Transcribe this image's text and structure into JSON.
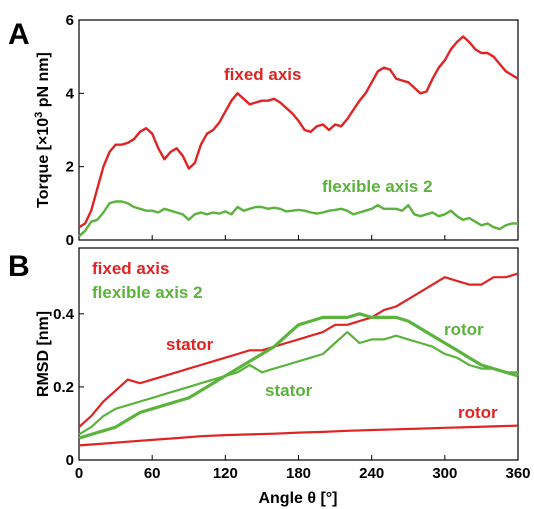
{
  "colors": {
    "red": "#e02424",
    "green": "#5bb33d",
    "axis": "#000000"
  },
  "chart_data": [
    {
      "panel": "A",
      "type": "line",
      "ylabel": "Torque [×10³ pN nm]",
      "xlabel": "",
      "xlim": [
        0,
        360
      ],
      "ylim": [
        0,
        6
      ],
      "xticks": [
        "0",
        "60",
        "120",
        "180",
        "240",
        "300",
        "360"
      ],
      "yticks": [
        "0",
        "2",
        "4",
        "6"
      ],
      "grid": false,
      "annotations": [
        {
          "text": "fixed axis",
          "color": "red"
        },
        {
          "text": "flexible axis 2",
          "color": "green"
        }
      ],
      "series": [
        {
          "name": "fixed axis",
          "color": "red",
          "x": [
            0,
            5,
            10,
            15,
            20,
            25,
            30,
            35,
            40,
            45,
            50,
            55,
            60,
            65,
            70,
            75,
            80,
            85,
            90,
            95,
            100,
            105,
            110,
            115,
            120,
            125,
            130,
            135,
            140,
            145,
            150,
            155,
            160,
            165,
            170,
            175,
            180,
            185,
            190,
            195,
            200,
            205,
            210,
            215,
            220,
            225,
            230,
            235,
            240,
            245,
            250,
            255,
            260,
            265,
            270,
            275,
            280,
            285,
            290,
            295,
            300,
            305,
            310,
            315,
            320,
            325,
            330,
            335,
            340,
            345,
            350,
            355,
            360
          ],
          "y": [
            0.35,
            0.45,
            0.8,
            1.4,
            2.0,
            2.4,
            2.6,
            2.6,
            2.65,
            2.75,
            2.95,
            3.05,
            2.9,
            2.5,
            2.2,
            2.4,
            2.5,
            2.3,
            1.95,
            2.1,
            2.6,
            2.9,
            3.0,
            3.2,
            3.5,
            3.8,
            4.0,
            3.85,
            3.7,
            3.75,
            3.8,
            3.8,
            3.85,
            3.75,
            3.6,
            3.45,
            3.25,
            3.0,
            2.95,
            3.1,
            3.15,
            3.0,
            3.15,
            3.1,
            3.3,
            3.55,
            3.8,
            4.0,
            4.3,
            4.6,
            4.7,
            4.65,
            4.4,
            4.35,
            4.3,
            4.15,
            4.0,
            4.05,
            4.4,
            4.7,
            4.9,
            5.2,
            5.4,
            5.55,
            5.4,
            5.2,
            5.1,
            5.1,
            5.0,
            4.8,
            4.6,
            4.5,
            4.4
          ]
        },
        {
          "name": "flexible axis 2",
          "color": "green",
          "x": [
            0,
            5,
            10,
            15,
            20,
            25,
            30,
            35,
            40,
            45,
            50,
            55,
            60,
            65,
            70,
            75,
            80,
            85,
            90,
            95,
            100,
            105,
            110,
            115,
            120,
            125,
            130,
            135,
            140,
            145,
            150,
            155,
            160,
            165,
            170,
            175,
            180,
            185,
            190,
            195,
            200,
            205,
            210,
            215,
            220,
            225,
            230,
            235,
            240,
            245,
            250,
            255,
            260,
            265,
            270,
            275,
            280,
            285,
            290,
            295,
            300,
            305,
            310,
            315,
            320,
            325,
            330,
            335,
            340,
            345,
            350,
            355,
            360
          ],
          "y": [
            0.1,
            0.25,
            0.5,
            0.55,
            0.75,
            1.0,
            1.05,
            1.05,
            1.0,
            0.9,
            0.85,
            0.8,
            0.8,
            0.75,
            0.85,
            0.8,
            0.75,
            0.7,
            0.55,
            0.7,
            0.75,
            0.7,
            0.75,
            0.72,
            0.78,
            0.7,
            0.9,
            0.8,
            0.85,
            0.9,
            0.9,
            0.85,
            0.88,
            0.85,
            0.78,
            0.8,
            0.82,
            0.8,
            0.75,
            0.72,
            0.75,
            0.8,
            0.82,
            0.85,
            0.8,
            0.7,
            0.75,
            0.8,
            0.85,
            0.95,
            0.85,
            0.85,
            0.85,
            0.8,
            0.95,
            0.7,
            0.65,
            0.7,
            0.75,
            0.65,
            0.7,
            0.8,
            0.65,
            0.55,
            0.6,
            0.5,
            0.4,
            0.45,
            0.35,
            0.3,
            0.4,
            0.45,
            0.45
          ]
        }
      ]
    },
    {
      "panel": "B",
      "type": "line",
      "ylabel": "RMSD [nm]",
      "xlabel": "Angle θ [°]",
      "xlim": [
        0,
        360
      ],
      "ylim": [
        0,
        0.58
      ],
      "xticks": [
        "0",
        "60",
        "120",
        "180",
        "240",
        "300",
        "360"
      ],
      "yticks": [
        "0",
        "0.2",
        "0.4"
      ],
      "grid": false,
      "legend": [
        {
          "text": "fixed axis",
          "color": "red"
        },
        {
          "text": "flexible axis 2",
          "color": "green"
        }
      ],
      "annotations": [
        {
          "text": "stator",
          "color": "red"
        },
        {
          "text": "rotor",
          "color": "red"
        },
        {
          "text": "stator",
          "color": "green"
        },
        {
          "text": "rotor",
          "color": "green"
        }
      ],
      "series": [
        {
          "label": "fixed axis stator",
          "color": "red",
          "x": [
            0,
            10,
            20,
            30,
            40,
            50,
            60,
            70,
            80,
            90,
            100,
            110,
            120,
            130,
            140,
            150,
            160,
            170,
            180,
            190,
            200,
            210,
            220,
            230,
            240,
            250,
            260,
            270,
            280,
            290,
            300,
            310,
            320,
            330,
            340,
            350,
            360
          ],
          "y": [
            0.09,
            0.12,
            0.16,
            0.19,
            0.22,
            0.21,
            0.22,
            0.23,
            0.24,
            0.25,
            0.26,
            0.27,
            0.28,
            0.29,
            0.3,
            0.3,
            0.31,
            0.32,
            0.33,
            0.34,
            0.35,
            0.37,
            0.37,
            0.38,
            0.39,
            0.41,
            0.42,
            0.44,
            0.46,
            0.48,
            0.5,
            0.49,
            0.48,
            0.48,
            0.5,
            0.5,
            0.51
          ]
        },
        {
          "label": "fixed axis rotor",
          "color": "red",
          "x": [
            0,
            20,
            40,
            60,
            80,
            100,
            120,
            140,
            160,
            180,
            200,
            220,
            240,
            260,
            280,
            300,
            320,
            340,
            360
          ],
          "y": [
            0.04,
            0.045,
            0.05,
            0.055,
            0.06,
            0.065,
            0.068,
            0.07,
            0.072,
            0.075,
            0.077,
            0.08,
            0.082,
            0.084,
            0.086,
            0.088,
            0.09,
            0.092,
            0.094
          ]
        },
        {
          "label": "flexible axis 2 stator",
          "color": "green",
          "x": [
            0,
            10,
            20,
            30,
            40,
            50,
            60,
            70,
            80,
            90,
            100,
            110,
            120,
            130,
            140,
            150,
            160,
            170,
            180,
            190,
            200,
            210,
            220,
            230,
            240,
            250,
            260,
            270,
            280,
            290,
            300,
            310,
            320,
            330,
            340,
            350,
            360
          ],
          "y": [
            0.07,
            0.09,
            0.12,
            0.14,
            0.15,
            0.16,
            0.17,
            0.18,
            0.19,
            0.2,
            0.21,
            0.22,
            0.23,
            0.24,
            0.26,
            0.24,
            0.25,
            0.26,
            0.27,
            0.28,
            0.29,
            0.32,
            0.35,
            0.32,
            0.33,
            0.33,
            0.34,
            0.33,
            0.32,
            0.31,
            0.29,
            0.28,
            0.26,
            0.25,
            0.25,
            0.24,
            0.24
          ]
        },
        {
          "label": "flexible axis 2 rotor",
          "color": "green",
          "x": [
            0,
            10,
            20,
            30,
            40,
            50,
            60,
            70,
            80,
            90,
            100,
            110,
            120,
            130,
            140,
            150,
            160,
            170,
            180,
            190,
            200,
            210,
            220,
            230,
            240,
            250,
            260,
            270,
            280,
            290,
            300,
            310,
            320,
            330,
            340,
            350,
            360
          ],
          "y": [
            0.06,
            0.07,
            0.08,
            0.09,
            0.11,
            0.13,
            0.14,
            0.15,
            0.16,
            0.17,
            0.19,
            0.21,
            0.23,
            0.25,
            0.27,
            0.29,
            0.31,
            0.34,
            0.37,
            0.38,
            0.39,
            0.39,
            0.39,
            0.4,
            0.39,
            0.39,
            0.39,
            0.38,
            0.36,
            0.34,
            0.32,
            0.3,
            0.28,
            0.26,
            0.25,
            0.24,
            0.23
          ]
        }
      ]
    }
  ]
}
